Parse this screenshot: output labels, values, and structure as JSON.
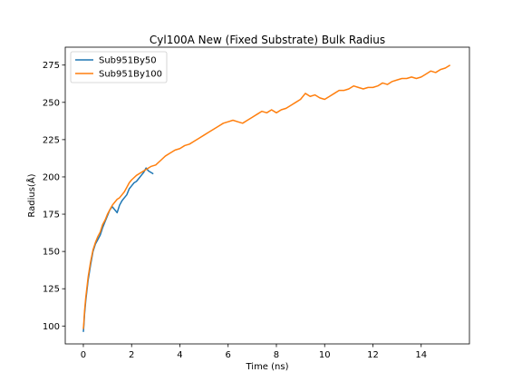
{
  "chart_data": {
    "type": "line",
    "title": "Cyl100A New (Fixed Substrate) Bulk Radius",
    "xlabel": "Time (ns)",
    "ylabel": "Radius(Å)",
    "xlim": [
      -0.75,
      16
    ],
    "ylim": [
      88,
      287
    ],
    "xticks": [
      0,
      2,
      4,
      6,
      8,
      10,
      12,
      14
    ],
    "yticks": [
      100,
      125,
      150,
      175,
      200,
      225,
      250,
      275
    ],
    "grid": false,
    "legend_position": "upper-left",
    "series": [
      {
        "name": "Sub951By50",
        "color": "#1f77b4",
        "x": [
          0,
          0.02,
          0.05,
          0.1,
          0.15,
          0.2,
          0.3,
          0.4,
          0.5,
          0.6,
          0.7,
          0.8,
          0.9,
          1.0,
          1.1,
          1.2,
          1.3,
          1.4,
          1.5,
          1.6,
          1.7,
          1.8,
          1.9,
          2.0,
          2.1,
          2.2,
          2.3,
          2.4,
          2.5,
          2.6,
          2.7,
          2.8,
          2.9
        ],
        "y": [
          96,
          100,
          108,
          117,
          124,
          131,
          141,
          150,
          155,
          158,
          161,
          166,
          170,
          174,
          178,
          180,
          178,
          176,
          181,
          184,
          186,
          188,
          192,
          194,
          196,
          197,
          199,
          201,
          203,
          206,
          204,
          203,
          202
        ]
      },
      {
        "name": "Sub951By100",
        "color": "#ff7f0e",
        "x": [
          0,
          0.02,
          0.05,
          0.1,
          0.15,
          0.2,
          0.3,
          0.4,
          0.5,
          0.6,
          0.7,
          0.8,
          0.9,
          1.0,
          1.1,
          1.2,
          1.3,
          1.4,
          1.5,
          1.6,
          1.7,
          1.8,
          1.9,
          2.0,
          2.2,
          2.4,
          2.6,
          2.8,
          3.0,
          3.2,
          3.4,
          3.6,
          3.8,
          4.0,
          4.2,
          4.4,
          4.6,
          4.8,
          5.0,
          5.2,
          5.4,
          5.6,
          5.8,
          6.0,
          6.2,
          6.4,
          6.6,
          6.8,
          7.0,
          7.2,
          7.4,
          7.6,
          7.8,
          8.0,
          8.2,
          8.4,
          8.6,
          8.8,
          9.0,
          9.2,
          9.4,
          9.6,
          9.8,
          10.0,
          10.2,
          10.4,
          10.6,
          10.8,
          11.0,
          11.2,
          11.4,
          11.6,
          11.8,
          12.0,
          12.2,
          12.4,
          12.6,
          12.8,
          13.0,
          13.2,
          13.4,
          13.6,
          13.8,
          14.0,
          14.2,
          14.4,
          14.6,
          14.8,
          15.0,
          15.2
        ],
        "y": [
          98,
          102,
          110,
          119,
          126,
          133,
          143,
          151,
          156,
          160,
          163,
          168,
          171,
          175,
          178,
          181,
          183,
          185,
          186,
          188,
          190,
          193,
          196,
          198,
          201,
          203,
          205,
          207,
          208,
          211,
          214,
          216,
          218,
          219,
          221,
          222,
          224,
          226,
          228,
          230,
          232,
          234,
          236,
          237,
          238,
          237,
          236,
          238,
          240,
          242,
          244,
          243,
          245,
          243,
          245,
          246,
          248,
          250,
          252,
          256,
          254,
          255,
          253,
          252,
          254,
          256,
          258,
          258,
          259,
          261,
          260,
          259,
          260,
          260,
          261,
          263,
          262,
          264,
          265,
          266,
          266,
          267,
          266,
          267,
          269,
          271,
          270,
          272,
          273,
          275
        ]
      }
    ]
  }
}
